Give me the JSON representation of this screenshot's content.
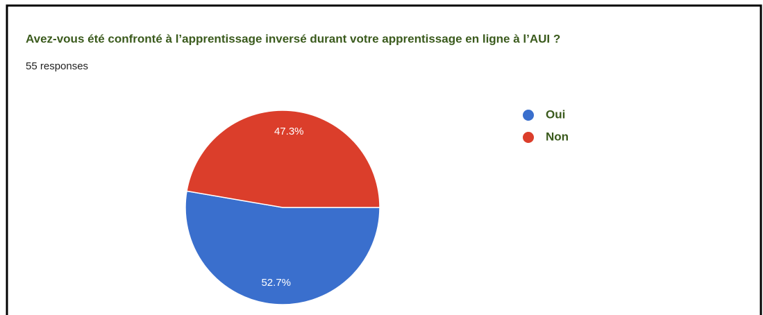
{
  "chart_data": {
    "type": "pie",
    "title": "Avez-vous été confronté à l’apprentissage inversé durant votre apprentissage en ligne à l’AUI ?",
    "subtitle": "55 responses",
    "categories": [
      "Oui",
      "Non"
    ],
    "values": [
      52.7,
      47.3
    ],
    "value_labels": [
      "52.7%",
      "47.3%"
    ],
    "colors": [
      "#3a6fcd",
      "#db3e2b"
    ],
    "legend": "right"
  }
}
